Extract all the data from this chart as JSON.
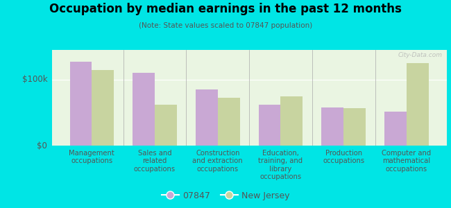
{
  "title": "Occupation by median earnings in the past 12 months",
  "subtitle": "(Note: State values scaled to 07847 population)",
  "categories": [
    "Management\noccupations",
    "Sales and\nrelated\noccupations",
    "Construction\nand extraction\noccupations",
    "Education,\ntraining, and\nlibrary\noccupations",
    "Production\noccupations",
    "Computer and\nmathematical\noccupations"
  ],
  "values_07847": [
    127000,
    110000,
    85000,
    62000,
    58000,
    52000
  ],
  "values_nj": [
    115000,
    62000,
    72000,
    75000,
    57000,
    125000
  ],
  "color_07847": "#c9a8d4",
  "color_nj": "#c8d4a0",
  "bar_width": 0.35,
  "ylim": [
    0,
    145000
  ],
  "yticks": [
    0,
    100000
  ],
  "ytick_labels": [
    "$0",
    "$100k"
  ],
  "background_color": "#eaf5e2",
  "outer_background": "#00e5e5",
  "legend_label_07847": "07847",
  "legend_label_nj": "New Jersey",
  "watermark": "City-Data.com"
}
